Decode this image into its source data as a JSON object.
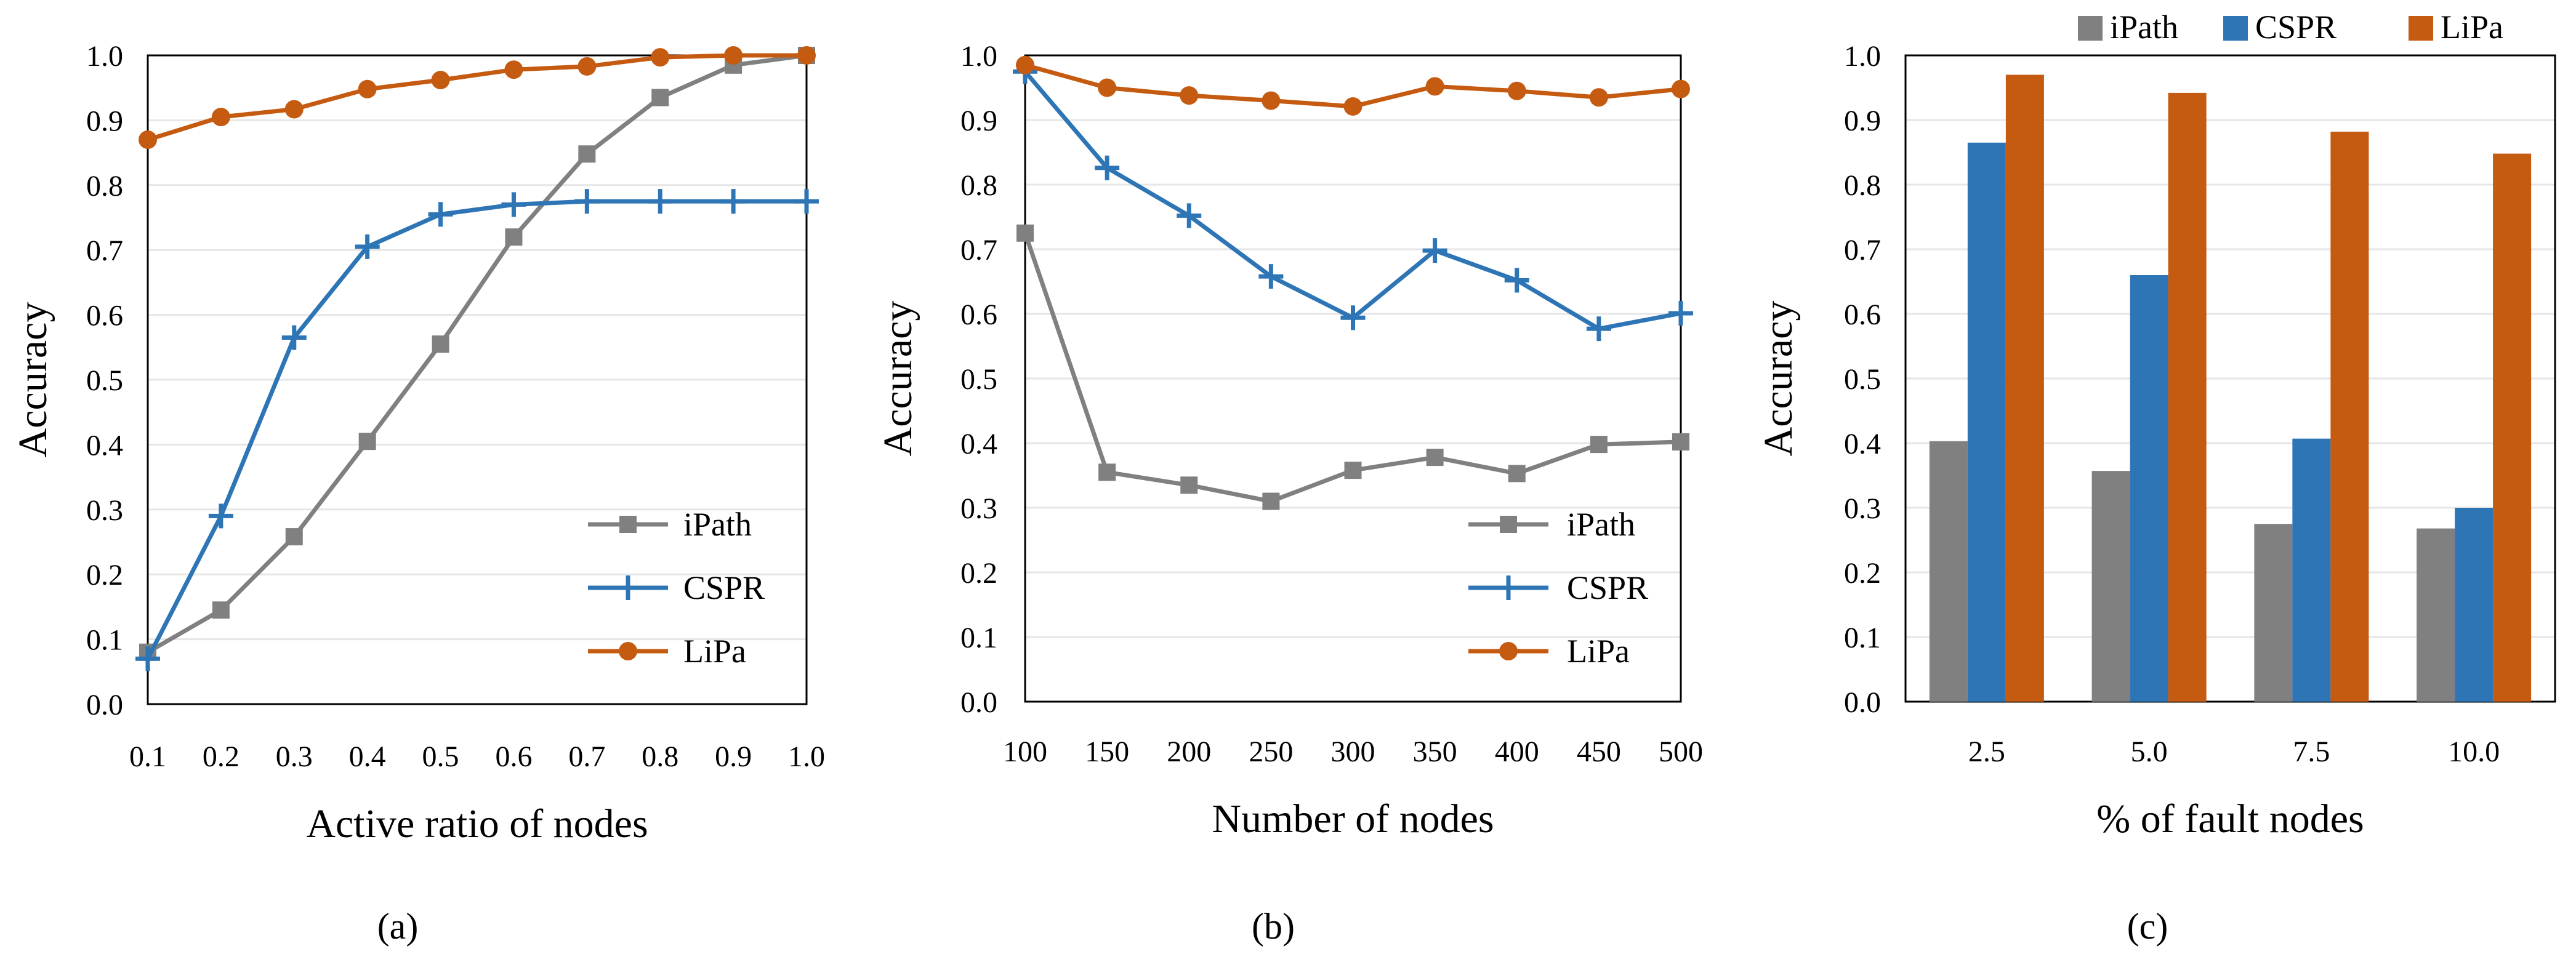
{
  "chart_data": [
    {
      "type": "line",
      "panel_label": "(a)",
      "xlabel": "Active ratio of nodes",
      "ylabel": "Accuracy",
      "x": [
        0.1,
        0.2,
        0.3,
        0.4,
        0.5,
        0.6,
        0.7,
        0.8,
        0.9,
        1.0
      ],
      "x_tick_labels": [
        "0.1",
        "0.2",
        "0.3",
        "0.4",
        "0.5",
        "0.6",
        "0.7",
        "0.8",
        "0.9",
        "1.0"
      ],
      "y_tick_labels": [
        "0.0",
        "0.1",
        "0.2",
        "0.3",
        "0.4",
        "0.5",
        "0.6",
        "0.7",
        "0.8",
        "0.9",
        "1.0"
      ],
      "ylim": [
        0,
        1
      ],
      "grid": true,
      "legend_position": "bottom-right",
      "series": [
        {
          "name": "iPath",
          "color": "#808080",
          "marker": "square",
          "values": [
            0.08,
            0.145,
            0.258,
            0.405,
            0.555,
            0.72,
            0.848,
            0.935,
            0.985,
            1.0
          ]
        },
        {
          "name": "CSPR",
          "color": "#2e75b6",
          "marker": "plus",
          "values": [
            0.07,
            0.29,
            0.565,
            0.705,
            0.755,
            0.77,
            0.775,
            0.775,
            0.775,
            0.775
          ]
        },
        {
          "name": "LiPa",
          "color": "#c55a11",
          "marker": "circle",
          "values": [
            0.87,
            0.905,
            0.917,
            0.948,
            0.962,
            0.978,
            0.983,
            0.997,
            1.0,
            1.0
          ]
        }
      ]
    },
    {
      "type": "line",
      "panel_label": "(b)",
      "xlabel": "Number of nodes",
      "ylabel": "Accuracy",
      "x": [
        100,
        150,
        200,
        250,
        300,
        350,
        400,
        450,
        500
      ],
      "x_tick_labels": [
        "100",
        "150",
        "200",
        "250",
        "300",
        "350",
        "400",
        "450",
        "500"
      ],
      "y_tick_labels": [
        "0.0",
        "0.1",
        "0.2",
        "0.3",
        "0.4",
        "0.5",
        "0.6",
        "0.7",
        "0.8",
        "0.9",
        "1.0"
      ],
      "ylim": [
        0,
        1
      ],
      "grid": true,
      "legend_position": "bottom-right",
      "series": [
        {
          "name": "iPath",
          "color": "#808080",
          "marker": "square",
          "values": [
            0.725,
            0.355,
            0.335,
            0.31,
            0.358,
            0.378,
            0.353,
            0.398,
            0.402
          ]
        },
        {
          "name": "CSPR",
          "color": "#2e75b6",
          "marker": "plus",
          "values": [
            0.975,
            0.826,
            0.752,
            0.658,
            0.594,
            0.698,
            0.652,
            0.577,
            0.601
          ]
        },
        {
          "name": "LiPa",
          "color": "#c55a11",
          "marker": "circle",
          "values": [
            0.985,
            0.95,
            0.938,
            0.93,
            0.921,
            0.952,
            0.945,
            0.935,
            0.948
          ]
        }
      ]
    },
    {
      "type": "bar",
      "panel_label": "(c)",
      "xlabel": "% of fault nodes",
      "ylabel": "Accuracy",
      "categories": [
        "2.5",
        "5.0",
        "7.5",
        "10.0"
      ],
      "y_tick_labels": [
        "0.0",
        "0.1",
        "0.2",
        "0.3",
        "0.4",
        "0.5",
        "0.6",
        "0.7",
        "0.8",
        "0.9",
        "1.0"
      ],
      "ylim": [
        0,
        1
      ],
      "grid": true,
      "legend_position": "top",
      "series": [
        {
          "name": "iPath",
          "color": "#808080",
          "values": [
            0.403,
            0.357,
            0.275,
            0.268
          ]
        },
        {
          "name": "CSPR",
          "color": "#2e75b6",
          "values": [
            0.865,
            0.66,
            0.407,
            0.3
          ]
        },
        {
          "name": "LiPa",
          "color": "#c55a11",
          "values": [
            0.97,
            0.942,
            0.882,
            0.848
          ]
        }
      ]
    }
  ]
}
